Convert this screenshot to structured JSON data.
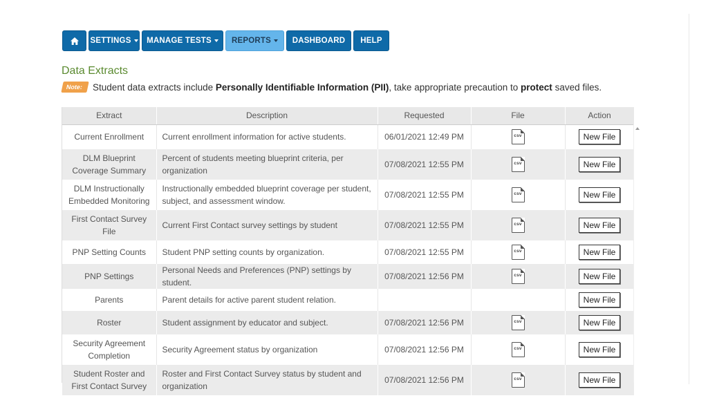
{
  "nav": {
    "home_icon": "home-icon",
    "items": [
      "SETTINGS",
      "MANAGE TESTS",
      "REPORTS",
      "DASHBOARD",
      "HELP"
    ]
  },
  "page": {
    "title": "Data Extracts",
    "note_badge": "Note:",
    "note_text_1": "Student data extracts include ",
    "note_bold_1": "Personally Identifiable Information (PII)",
    "note_text_2": ", take appropriate precaution to ",
    "note_bold_2": "protect",
    "note_text_3": " saved files."
  },
  "table": {
    "headers": [
      "Extract",
      "Description",
      "Requested",
      "File",
      "Action"
    ],
    "file_icon_label": "csv",
    "action_label": "New File",
    "rows": [
      {
        "extract": "Current Enrollment",
        "description": "Current enrollment information for active students.",
        "requested": "06/01/2021 12:49 PM",
        "file": true
      },
      {
        "extract": "DLM Blueprint Coverage Summary",
        "description": "Percent of students meeting blueprint criteria, per organization",
        "requested": "07/08/2021 12:55 PM",
        "file": true
      },
      {
        "extract": "DLM Instructionally Embedded Monitoring",
        "description": "Instructionally embedded blueprint coverage per student, subject, and assessment window.",
        "requested": "07/08/2021 12:55 PM",
        "file": true
      },
      {
        "extract": "First Contact Survey File",
        "description": "Current First Contact survey settings by student",
        "requested": "07/08/2021 12:55 PM",
        "file": true
      },
      {
        "extract": "PNP Setting Counts",
        "description": "Student PNP setting counts by organization.",
        "requested": "07/08/2021 12:55 PM",
        "file": true
      },
      {
        "extract": "PNP Settings",
        "description": "Personal Needs and Preferences (PNP) settings by student.",
        "requested": "07/08/2021 12:56 PM",
        "file": true
      },
      {
        "extract": "Parents",
        "description": "Parent details for active parent student relation.",
        "requested": "",
        "file": false
      },
      {
        "extract": "Roster",
        "description": "Student assignment by educator and subject.",
        "requested": "07/08/2021 12:56 PM",
        "file": true
      },
      {
        "extract": "Security Agreement Completion",
        "description": "Security Agreement status by organization",
        "requested": "07/08/2021 12:56 PM",
        "file": true
      },
      {
        "extract": "Student Roster and First Contact Survey",
        "description": "Roster and First Contact Survey status by student and organization",
        "requested": "07/08/2021 12:56 PM",
        "file": true
      }
    ]
  },
  "colors": {
    "nav_bg": "#0f6aa8",
    "nav_active_bg": "#64b5eb",
    "title": "#5a8a2f",
    "note_badge": "#f0a14a"
  }
}
